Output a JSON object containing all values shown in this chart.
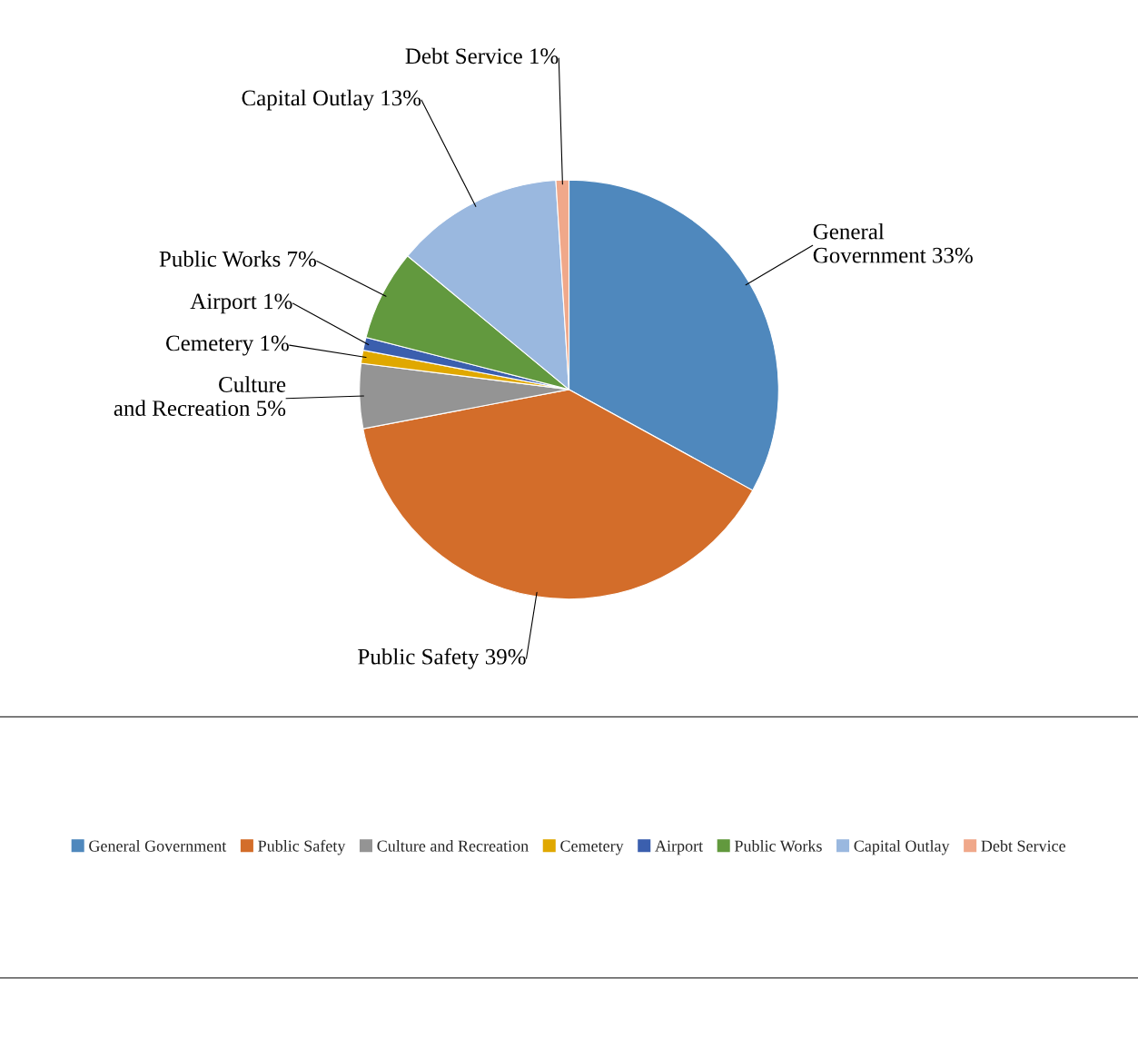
{
  "chart_data": {
    "type": "pie",
    "categories": [
      "General Government",
      "Public Safety",
      "Culture and Recreation",
      "Cemetery",
      "Airport",
      "Public Works",
      "Capital Outlay",
      "Debt Service"
    ],
    "values": [
      33,
      39,
      5,
      1,
      1,
      7,
      13,
      1
    ],
    "value_labels": [
      "33%",
      "39%",
      "5%",
      "1%",
      "1%",
      "7%",
      "13%",
      "1%"
    ],
    "colors": [
      "#4f88bd",
      "#d36d2a",
      "#949494",
      "#e0a800",
      "#3b5fae",
      "#62993e",
      "#9ab8df",
      "#f0a88a"
    ],
    "legend": "bottom"
  }
}
